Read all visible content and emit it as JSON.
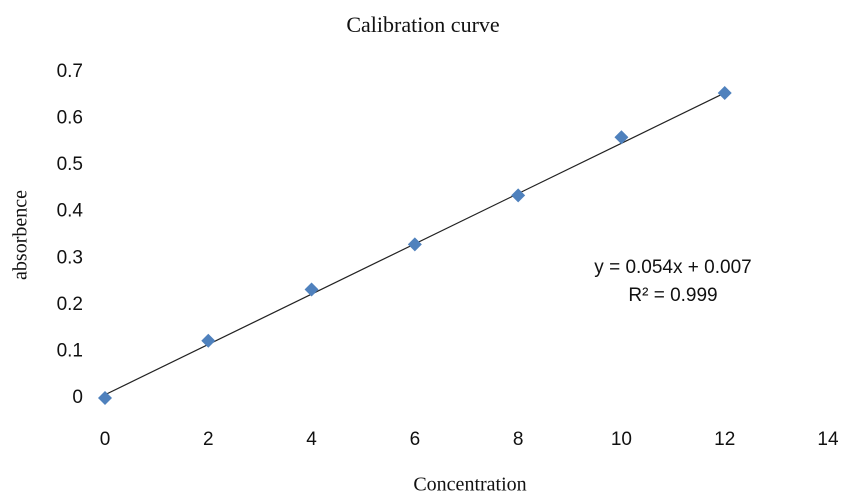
{
  "chart_data": {
    "type": "scatter",
    "title": "Calibration curve",
    "x_label": "Concentration",
    "y_label": "absorbence",
    "series": [
      {
        "name": "absorbence",
        "color": "#4f81bd",
        "x": [
          0,
          2,
          4,
          6,
          8,
          10,
          12
        ],
        "values": [
          0,
          0.123,
          0.233,
          0.33,
          0.435,
          0.56,
          0.655
        ]
      }
    ],
    "trendline": {
      "slope": 0.054,
      "intercept": 0.007,
      "color": "#222"
    },
    "annotations": [
      "y = 0.054x + 0.007",
      "R² = 0.999"
    ],
    "xlim": [
      0,
      14
    ],
    "xticks": [
      0,
      2,
      4,
      6,
      8,
      10,
      12,
      14
    ],
    "ylim": [
      0,
      0.7
    ],
    "yticks": [
      0,
      0.1,
      0.2,
      0.3,
      0.4,
      0.5,
      0.6,
      0.7
    ],
    "grid": false
  }
}
